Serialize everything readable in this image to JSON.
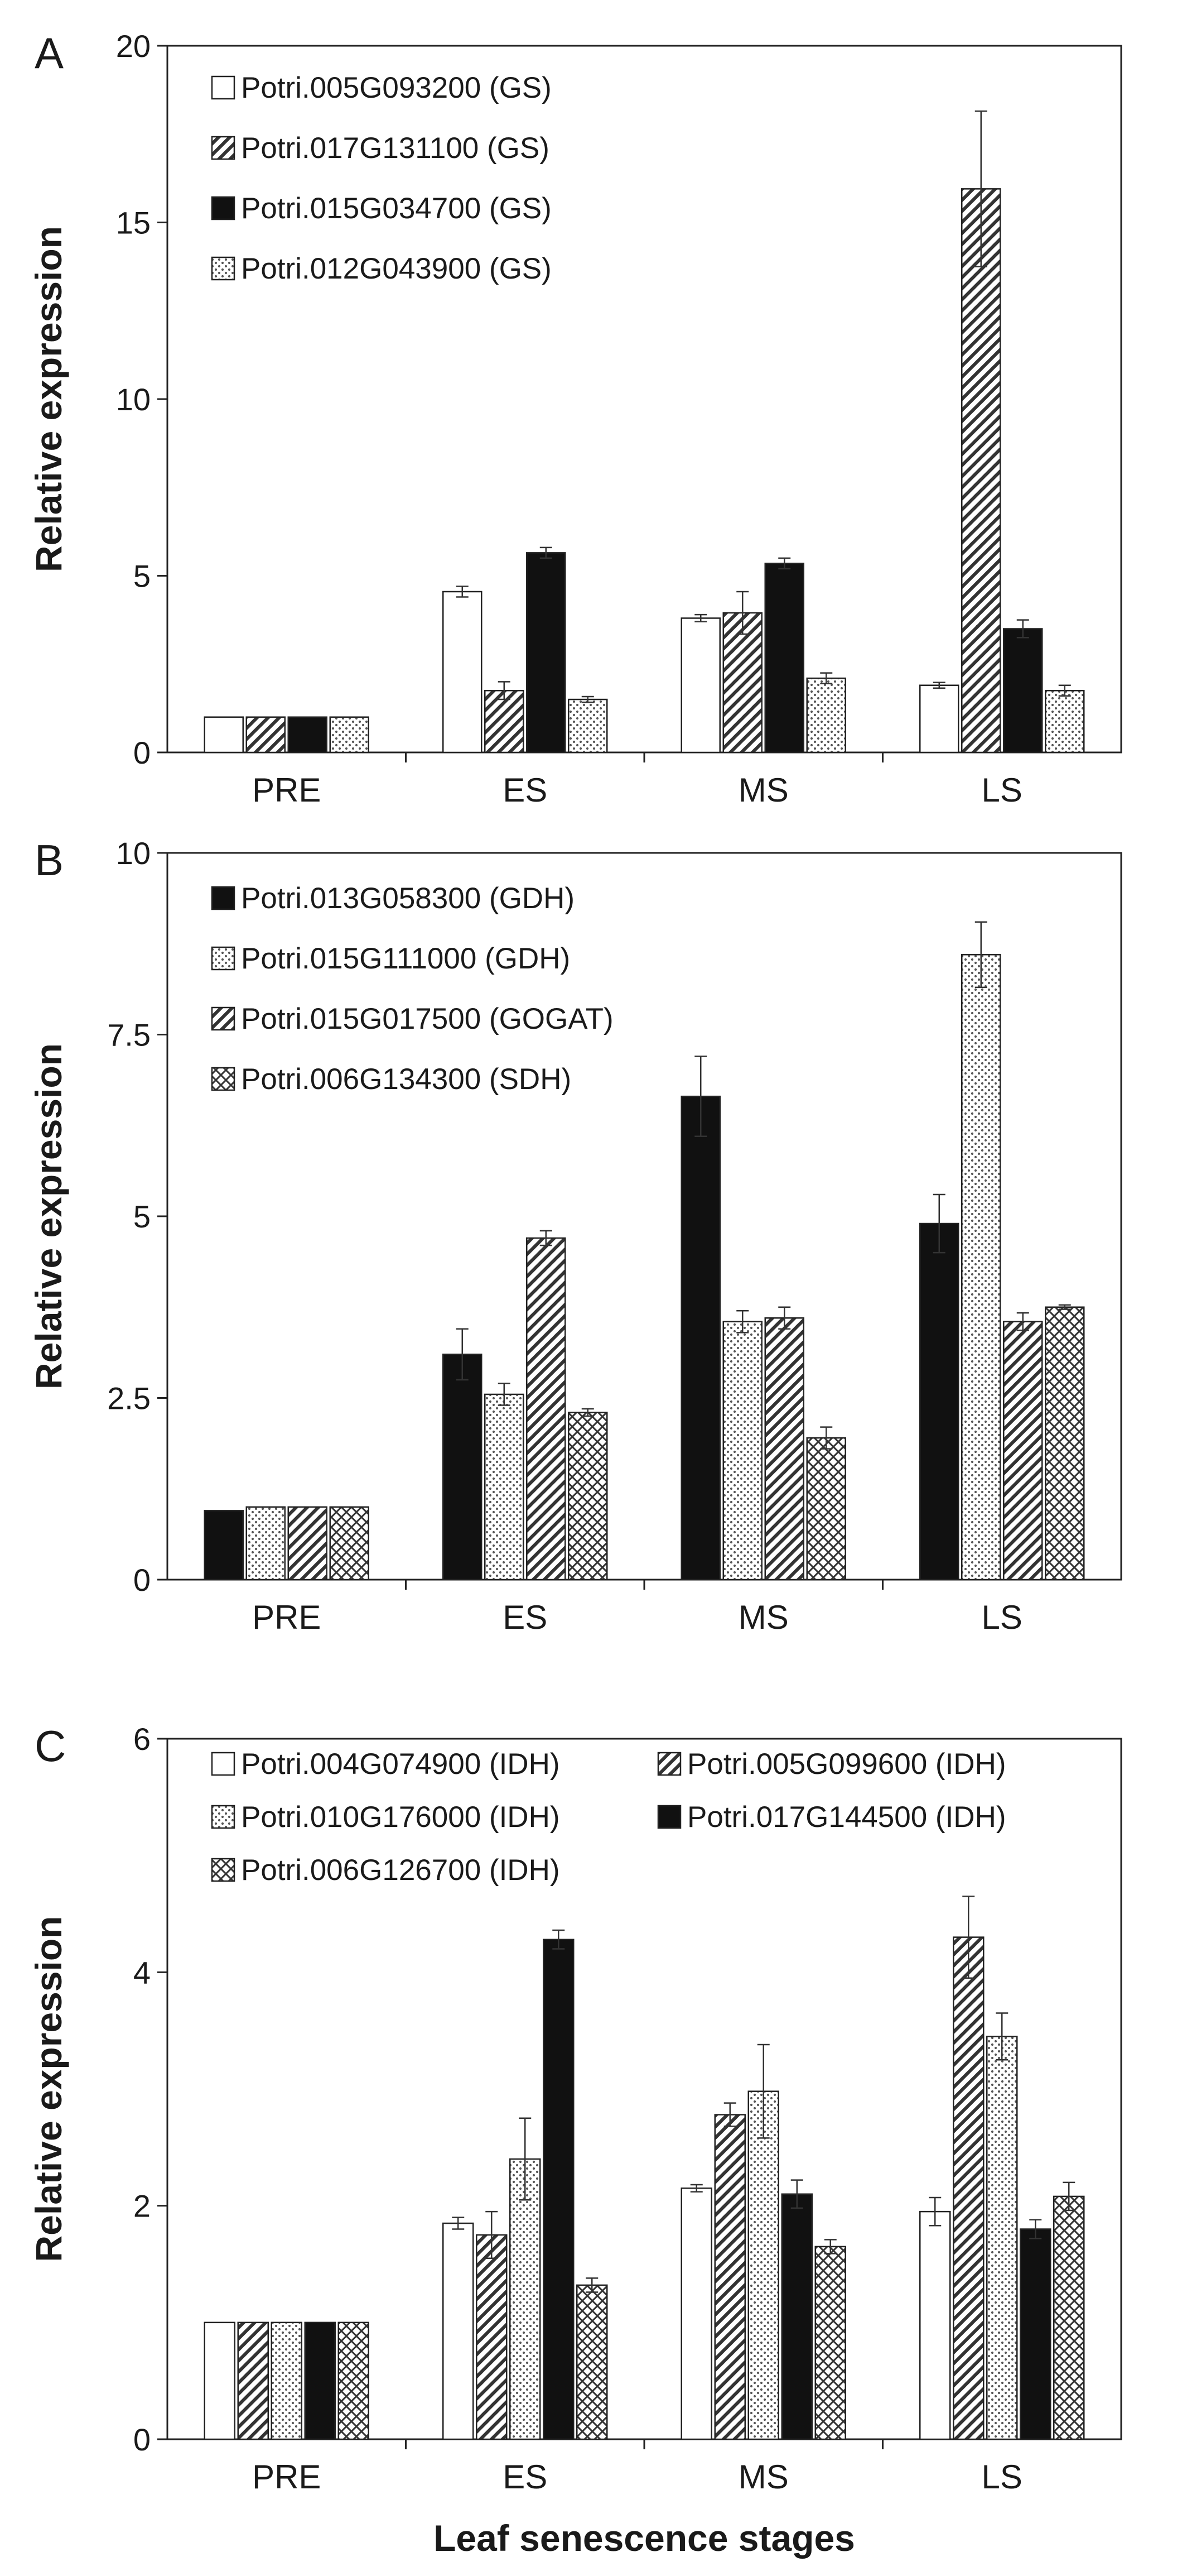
{
  "chart_data": [
    {
      "panel": "A",
      "type": "bar",
      "ylabel": "Relative expression",
      "xlabel": "",
      "categories": [
        "PRE",
        "ES",
        "MS",
        "LS"
      ],
      "ylim": [
        0,
        20
      ],
      "yticks": [
        0,
        5,
        10,
        15,
        20
      ],
      "ytick_labels": [
        "0",
        "5",
        "10",
        "15",
        "20"
      ],
      "series": [
        {
          "name": "Potri.005G093200 (GS)",
          "pattern": "white",
          "values": [
            1.0,
            4.55,
            3.8,
            1.9
          ],
          "errors": [
            0,
            0.15,
            0.1,
            0.08
          ]
        },
        {
          "name": "Potri.017G131100 (GS)",
          "pattern": "diag",
          "values": [
            1.0,
            1.75,
            3.95,
            15.95
          ],
          "errors": [
            0,
            0.25,
            0.6,
            2.2
          ]
        },
        {
          "name": "Potri.015G034700 (GS)",
          "pattern": "black",
          "values": [
            1.0,
            5.65,
            5.35,
            3.5
          ],
          "errors": [
            0,
            0.15,
            0.15,
            0.25
          ]
        },
        {
          "name": "Potri.012G043900 (GS)",
          "pattern": "dots",
          "values": [
            1.0,
            1.5,
            2.1,
            1.75
          ],
          "errors": [
            0,
            0.08,
            0.15,
            0.15
          ]
        }
      ]
    },
    {
      "panel": "B",
      "type": "bar",
      "ylabel": "Relative expression",
      "xlabel": "",
      "categories": [
        "PRE",
        "ES",
        "MS",
        "LS"
      ],
      "ylim": [
        0,
        10
      ],
      "yticks": [
        0,
        2.5,
        5,
        7.5,
        10
      ],
      "ytick_labels": [
        "0",
        "2.5",
        "5",
        "7.5",
        "10"
      ],
      "series": [
        {
          "name": "Potri.013G058300 (GDH)",
          "pattern": "black",
          "values": [
            0.95,
            3.1,
            6.65,
            4.9
          ],
          "errors": [
            0,
            0.35,
            0.55,
            0.4
          ]
        },
        {
          "name": "Potri.015G111000 (GDH)",
          "pattern": "dots",
          "values": [
            1.0,
            2.55,
            3.55,
            8.6
          ],
          "errors": [
            0,
            0.15,
            0.15,
            0.45
          ]
        },
        {
          "name": "Potri.015G017500 (GOGAT)",
          "pattern": "diag",
          "values": [
            1.0,
            4.7,
            3.6,
            3.55
          ],
          "errors": [
            0,
            0.1,
            0.15,
            0.12
          ]
        },
        {
          "name": "Potri.006G134300 (SDH)",
          "pattern": "cross",
          "values": [
            1.0,
            2.3,
            1.95,
            3.75
          ],
          "errors": [
            0,
            0.05,
            0.15,
            0.03
          ]
        }
      ]
    },
    {
      "panel": "C",
      "type": "bar",
      "ylabel": "Relative expression",
      "xlabel": "Leaf senescence stages",
      "categories": [
        "PRE",
        "ES",
        "MS",
        "LS"
      ],
      "ylim": [
        0,
        6
      ],
      "yticks": [
        0,
        2,
        4,
        6
      ],
      "ytick_labels": [
        "0",
        "2",
        "4",
        "6"
      ],
      "series": [
        {
          "name": "Potri.004G074900 (IDH)",
          "pattern": "white",
          "values": [
            1.0,
            1.85,
            2.15,
            1.95
          ],
          "errors": [
            0,
            0.05,
            0.03,
            0.12
          ]
        },
        {
          "name": "Potri.005G099600 (IDH)",
          "pattern": "diag",
          "values": [
            1.0,
            1.75,
            2.78,
            4.3
          ],
          "errors": [
            0,
            0.2,
            0.1,
            0.35
          ]
        },
        {
          "name": "Potri.010G176000 (IDH)",
          "pattern": "dots",
          "values": [
            1.0,
            2.4,
            2.98,
            3.45
          ],
          "errors": [
            0,
            0.35,
            0.4,
            0.2
          ]
        },
        {
          "name": "Potri.017G144500 (IDH)",
          "pattern": "black",
          "values": [
            1.0,
            4.28,
            2.1,
            1.8
          ],
          "errors": [
            0,
            0.08,
            0.12,
            0.08
          ]
        },
        {
          "name": "Potri.006G126700 (IDH)",
          "pattern": "cross",
          "values": [
            1.0,
            1.32,
            1.65,
            2.08
          ],
          "errors": [
            0,
            0.06,
            0.06,
            0.12
          ]
        }
      ]
    }
  ]
}
